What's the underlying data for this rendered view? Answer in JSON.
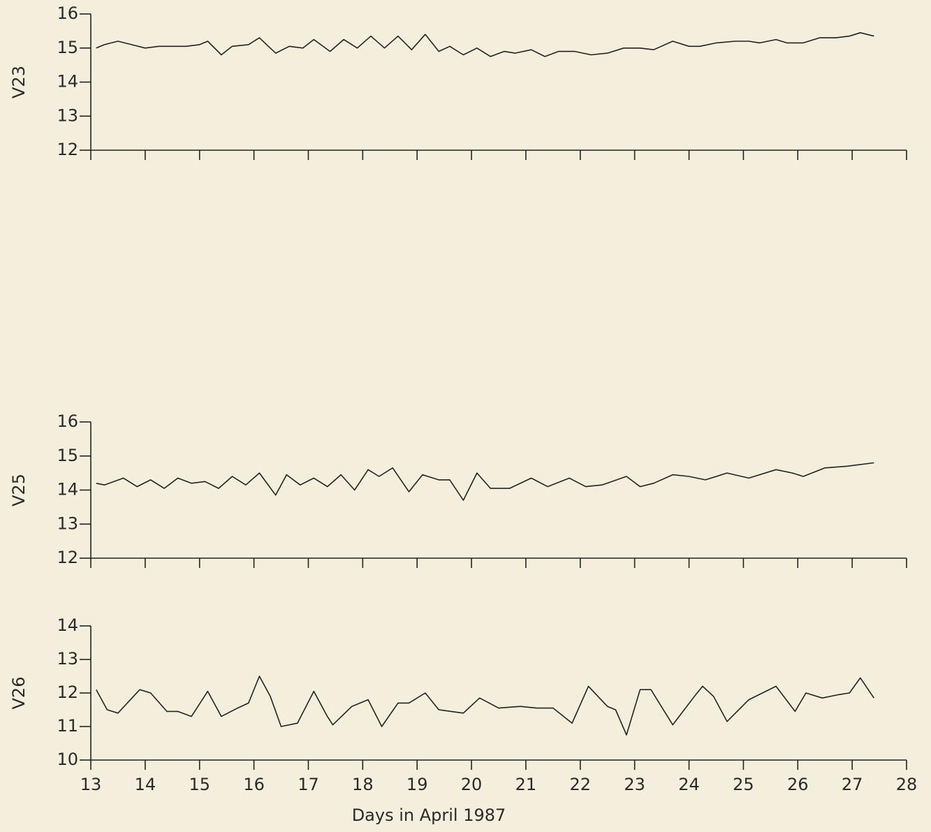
{
  "chart_data": [
    {
      "type": "line",
      "y_label": "V23",
      "xlim": [
        13,
        28
      ],
      "xticks": [
        13,
        14,
        15,
        16,
        17,
        18,
        19,
        20,
        21,
        22,
        23,
        24,
        25,
        26,
        27,
        28
      ],
      "xtick_labels": false,
      "ylim": [
        12,
        16
      ],
      "yticks": [
        12,
        13,
        14,
        15,
        16
      ],
      "color": "#222222",
      "x": [
        13.1,
        13.25,
        13.5,
        13.75,
        14.0,
        14.25,
        14.5,
        14.75,
        15.0,
        15.15,
        15.4,
        15.6,
        15.9,
        16.1,
        16.4,
        16.65,
        16.9,
        17.1,
        17.4,
        17.65,
        17.9,
        18.15,
        18.4,
        18.65,
        18.9,
        19.15,
        19.4,
        19.6,
        19.85,
        20.1,
        20.35,
        20.6,
        20.8,
        21.1,
        21.35,
        21.6,
        21.9,
        22.2,
        22.5,
        22.8,
        23.1,
        23.35,
        23.7,
        24.0,
        24.2,
        24.5,
        24.85,
        25.1,
        25.3,
        25.6,
        25.8,
        26.1,
        26.4,
        26.7,
        26.95,
        27.15,
        27.4
      ],
      "values": [
        15.0,
        15.1,
        15.2,
        15.1,
        15.0,
        15.05,
        15.05,
        15.05,
        15.1,
        15.2,
        14.8,
        15.05,
        15.1,
        15.3,
        14.85,
        15.05,
        15.0,
        15.25,
        14.9,
        15.25,
        15.0,
        15.35,
        15.0,
        15.35,
        14.95,
        15.4,
        14.9,
        15.05,
        14.8,
        15.0,
        14.75,
        14.9,
        14.85,
        14.95,
        14.75,
        14.9,
        14.9,
        14.8,
        14.85,
        15.0,
        15.0,
        14.95,
        15.2,
        15.05,
        15.05,
        15.15,
        15.2,
        15.2,
        15.15,
        15.25,
        15.15,
        15.15,
        15.3,
        15.3,
        15.35,
        15.45,
        15.35
      ]
    },
    {
      "type": "line",
      "y_label": "V25",
      "xlim": [
        13,
        28
      ],
      "xticks": [
        13,
        14,
        15,
        16,
        17,
        18,
        19,
        20,
        21,
        22,
        23,
        24,
        25,
        26,
        27,
        28
      ],
      "xtick_labels": false,
      "ylim": [
        12,
        16
      ],
      "yticks": [
        12,
        13,
        14,
        15,
        16
      ],
      "color": "#222222",
      "x": [
        13.1,
        13.25,
        13.6,
        13.85,
        14.1,
        14.35,
        14.6,
        14.85,
        15.1,
        15.35,
        15.6,
        15.85,
        16.1,
        16.4,
        16.6,
        16.85,
        17.1,
        17.35,
        17.6,
        17.85,
        18.1,
        18.3,
        18.55,
        18.85,
        19.1,
        19.4,
        19.6,
        19.85,
        20.1,
        20.35,
        20.7,
        21.1,
        21.4,
        21.8,
        22.1,
        22.4,
        22.85,
        23.1,
        23.35,
        23.7,
        24.0,
        24.3,
        24.7,
        25.1,
        25.6,
        25.9,
        26.1,
        26.5,
        26.9,
        27.4
      ],
      "values": [
        14.2,
        14.15,
        14.35,
        14.1,
        14.3,
        14.05,
        14.35,
        14.2,
        14.25,
        14.05,
        14.4,
        14.15,
        14.5,
        13.85,
        14.45,
        14.15,
        14.35,
        14.1,
        14.45,
        14.0,
        14.6,
        14.4,
        14.65,
        13.95,
        14.45,
        14.3,
        14.3,
        13.7,
        14.5,
        14.05,
        14.05,
        14.35,
        14.1,
        14.35,
        14.1,
        14.15,
        14.4,
        14.1,
        14.2,
        14.45,
        14.4,
        14.3,
        14.5,
        14.35,
        14.6,
        14.5,
        14.4,
        14.65,
        14.7,
        14.8
      ]
    },
    {
      "type": "line",
      "y_label": "V26",
      "x_label": "Days in April 1987",
      "xlim": [
        13,
        28
      ],
      "xticks": [
        13,
        14,
        15,
        16,
        17,
        18,
        19,
        20,
        21,
        22,
        23,
        24,
        25,
        26,
        27,
        28
      ],
      "xtick_labels": true,
      "ylim": [
        10,
        14
      ],
      "yticks": [
        10,
        11,
        12,
        13,
        14
      ],
      "color": "#222222",
      "x": [
        13.1,
        13.3,
        13.5,
        13.9,
        14.1,
        14.4,
        14.6,
        14.85,
        15.15,
        15.4,
        15.7,
        15.9,
        16.1,
        16.3,
        16.5,
        16.8,
        17.1,
        17.35,
        17.45,
        17.8,
        18.1,
        18.35,
        18.65,
        18.85,
        19.15,
        19.4,
        19.85,
        20.15,
        20.5,
        20.9,
        21.2,
        21.5,
        21.85,
        22.15,
        22.5,
        22.65,
        22.85,
        23.1,
        23.3,
        23.7,
        24.1,
        24.25,
        24.45,
        24.7,
        25.1,
        25.6,
        25.95,
        26.15,
        26.45,
        26.75,
        26.95,
        27.15,
        27.4
      ],
      "values": [
        12.1,
        11.5,
        11.4,
        12.1,
        12.0,
        11.45,
        11.45,
        11.3,
        12.05,
        11.3,
        11.55,
        11.7,
        12.5,
        11.9,
        11.0,
        11.1,
        12.05,
        11.3,
        11.05,
        11.6,
        11.8,
        11.0,
        11.7,
        11.7,
        12.0,
        11.5,
        11.4,
        11.85,
        11.55,
        11.6,
        11.55,
        11.55,
        11.1,
        12.2,
        11.6,
        11.5,
        10.75,
        12.1,
        12.1,
        11.05,
        11.9,
        12.2,
        11.9,
        11.15,
        11.8,
        12.2,
        11.45,
        12.0,
        11.85,
        11.95,
        12.0,
        12.45,
        11.85
      ]
    }
  ]
}
